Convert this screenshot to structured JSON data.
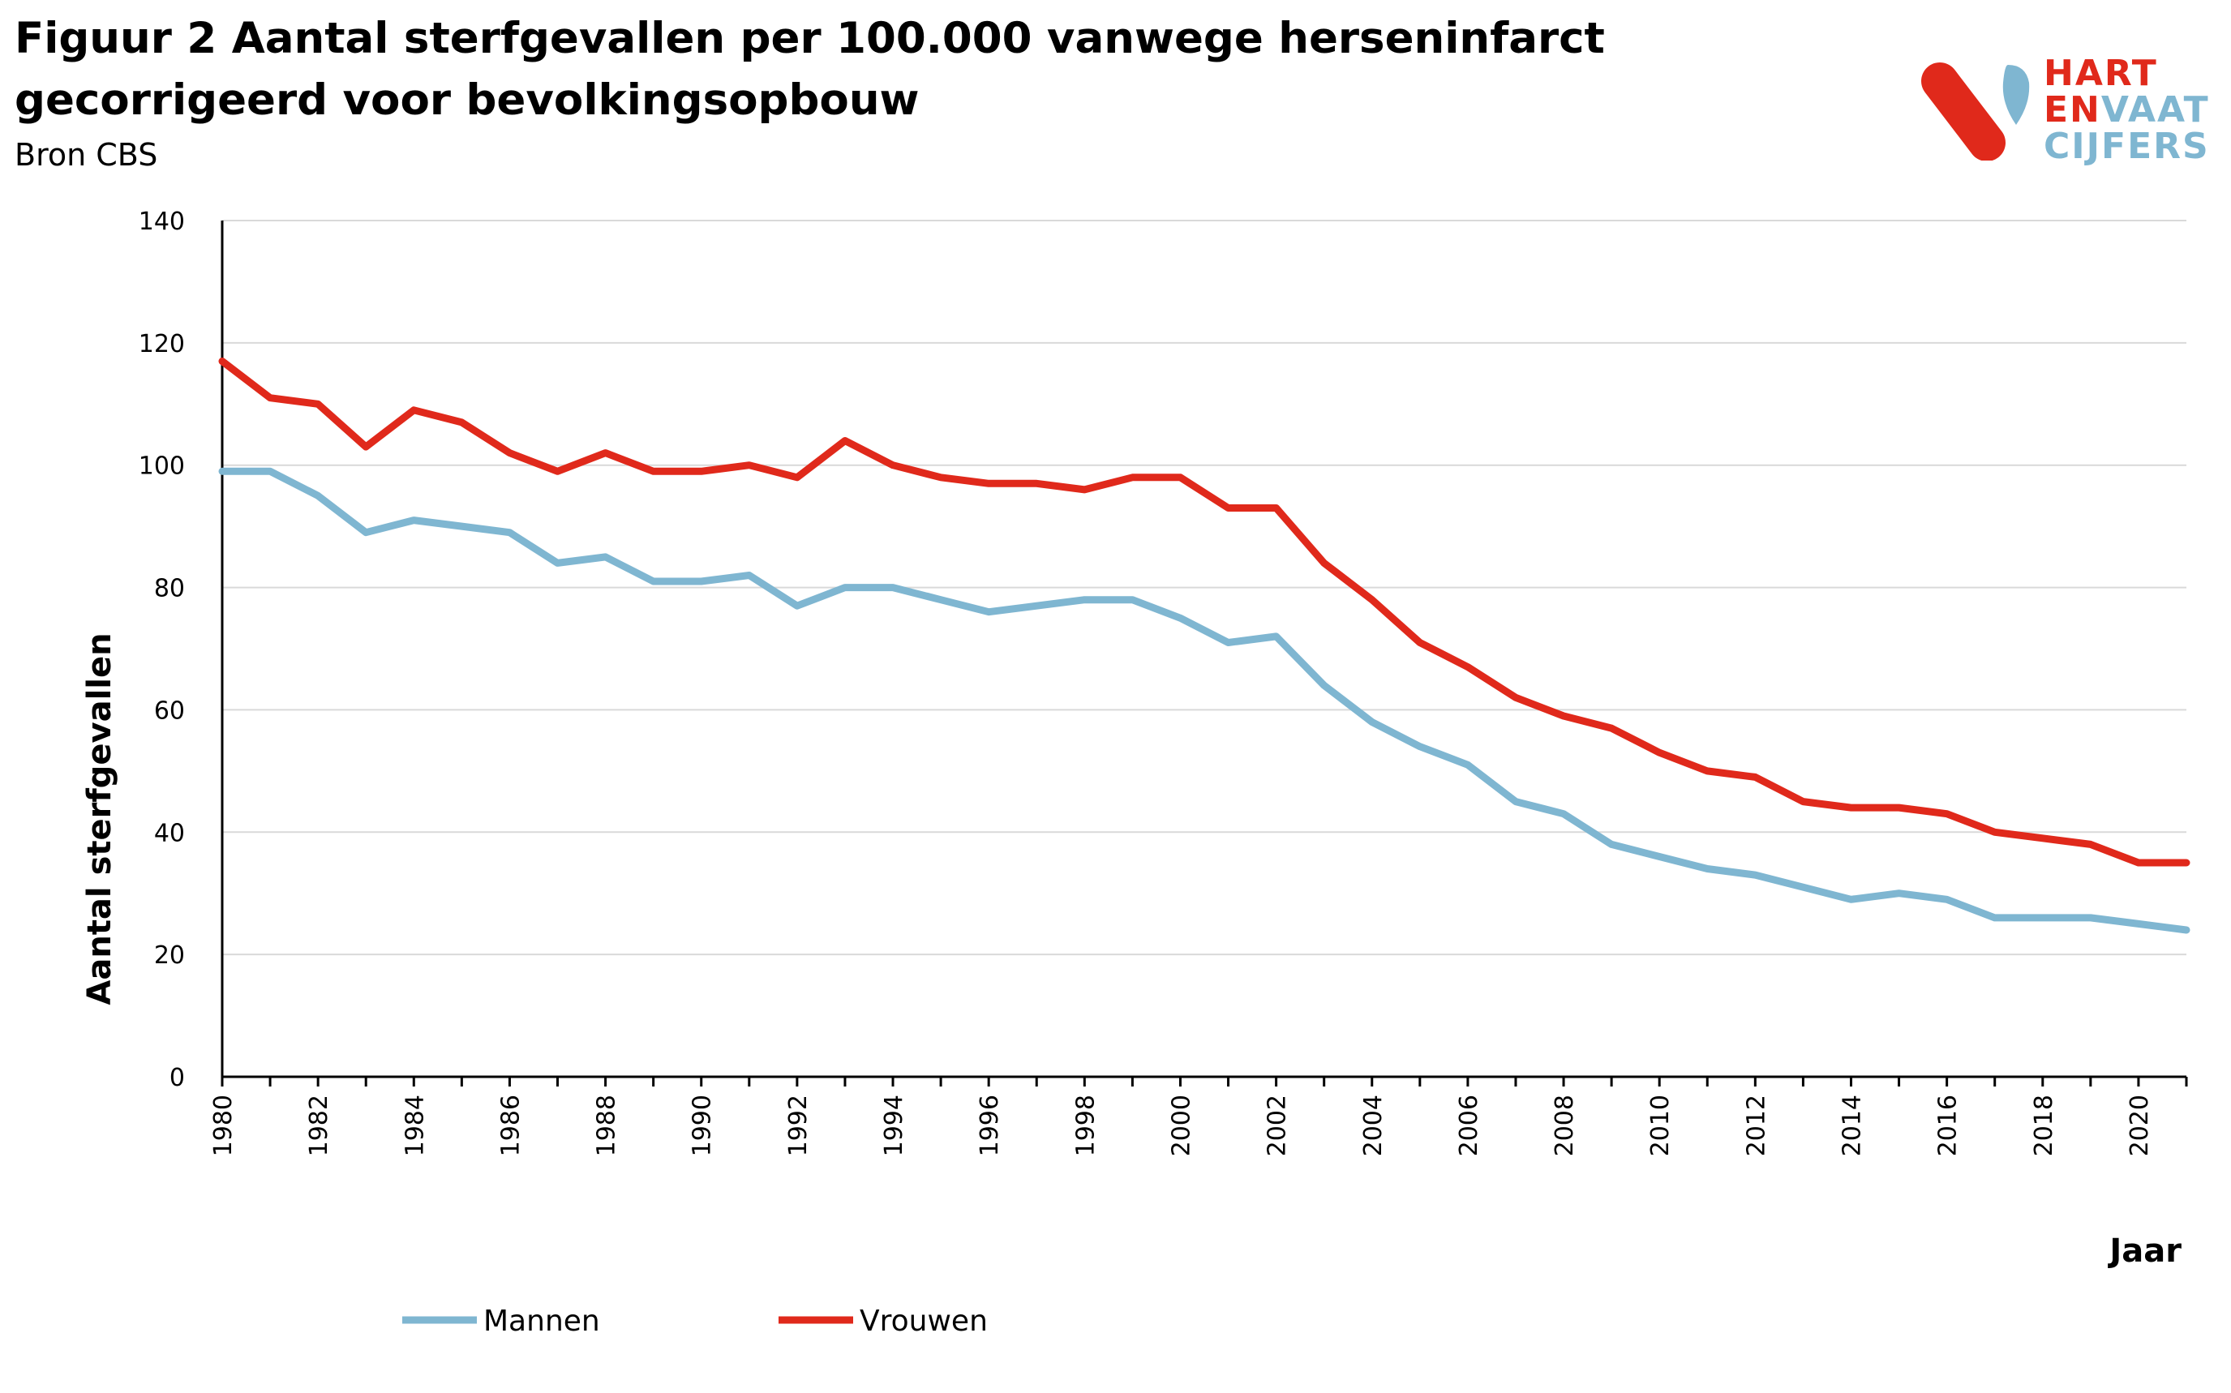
{
  "figure": {
    "title": "Figuur 2 Aantal sterfgevallen per 100.000 vanwege herseninfarct gecorrigeerd voor bevolkingsopbouw",
    "source": "Bron CBS"
  },
  "logo": {
    "line1": "HART",
    "line2a": "EN",
    "line2b": "VAAT",
    "line3": "CIJFERS",
    "colors": {
      "red": "#e0291b",
      "blue": "#7fb6d1"
    }
  },
  "chart_data": {
    "type": "line",
    "title": "Figuur 2 Aantal sterfgevallen per 100.000 vanwege herseninfarct gecorrigeerd voor bevolkingsopbouw",
    "xlabel": "Jaar",
    "ylabel": "Aantal sterfgevallen",
    "ylim": [
      0,
      140
    ],
    "yticks": [
      0,
      20,
      40,
      60,
      80,
      100,
      120,
      140
    ],
    "xticks": [
      1980,
      1982,
      1984,
      1986,
      1988,
      1990,
      1992,
      1994,
      1996,
      1998,
      2000,
      2002,
      2004,
      2006,
      2008,
      2010,
      2012,
      2014,
      2016,
      2018,
      2020
    ],
    "grid": true,
    "legend_position": "bottom-left",
    "x": [
      1980,
      1981,
      1982,
      1983,
      1984,
      1985,
      1986,
      1987,
      1988,
      1989,
      1990,
      1991,
      1992,
      1993,
      1994,
      1995,
      1996,
      1997,
      1998,
      1999,
      2000,
      2001,
      2002,
      2003,
      2004,
      2005,
      2006,
      2007,
      2008,
      2009,
      2010,
      2011,
      2012,
      2013,
      2014,
      2015,
      2016,
      2017,
      2018,
      2019,
      2020,
      2021
    ],
    "series": [
      {
        "name": "Mannen",
        "color": "#7fb6d1",
        "values": [
          99,
          99,
          95,
          89,
          91,
          90,
          89,
          84,
          85,
          81,
          81,
          82,
          77,
          80,
          80,
          78,
          76,
          77,
          78,
          78,
          75,
          71,
          72,
          64,
          58,
          54,
          51,
          45,
          43,
          38,
          36,
          34,
          33,
          31,
          29,
          30,
          29,
          26,
          26,
          26,
          25,
          24
        ]
      },
      {
        "name": "Vrouwen",
        "color": "#e0291b",
        "values": [
          117,
          111,
          110,
          103,
          109,
          107,
          102,
          99,
          102,
          99,
          99,
          100,
          98,
          104,
          100,
          98,
          97,
          97,
          96,
          98,
          98,
          93,
          93,
          84,
          78,
          71,
          67,
          62,
          59,
          57,
          53,
          50,
          49,
          45,
          44,
          44,
          43,
          40,
          39,
          38,
          35,
          35
        ]
      }
    ]
  }
}
